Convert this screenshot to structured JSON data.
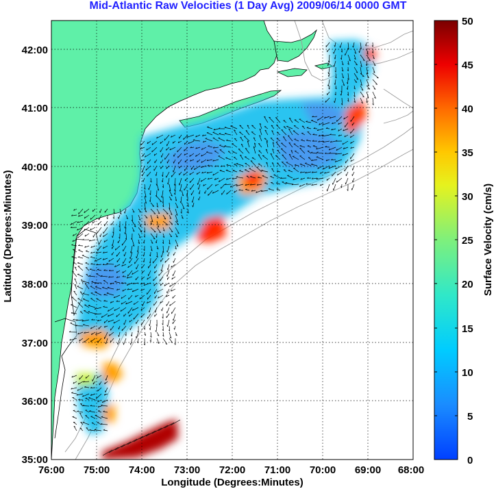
{
  "title": "Mid-Atlantic Raw Velocities (1 Day Avg) 2009/06/14 0000 GMT",
  "xlabel": "Longitude (Degrees:Minutes)",
  "ylabel": "Latitude (Degrees:Minutes)",
  "colorbar_label": "Surface Velocity (cm/s)",
  "x_ticks": [
    "76:00",
    "75:00",
    "74:00",
    "73:00",
    "72:00",
    "71:00",
    "70:00",
    "69:00",
    "68:00"
  ],
  "y_ticks": [
    "42:00",
    "41:00",
    "40:00",
    "39:00",
    "38:00",
    "37:00",
    "36:00",
    "35:00"
  ],
  "colorbar_ticks": [
    "50",
    "45",
    "40",
    "35",
    "30",
    "25",
    "20",
    "15",
    "10",
    "5",
    "0"
  ],
  "colors": {
    "land": "#5ff0a8",
    "ocean": "#ffffff",
    "title": "#1f1fff",
    "grid": "#000000",
    "bathymetry": "#9a9a9a"
  },
  "chart_data": {
    "type": "heatmap",
    "x_range_deg_west": [
      76,
      68
    ],
    "y_range_deg_north": [
      35,
      42.5
    ],
    "colorbar_range_cm_s": [
      0,
      50
    ],
    "colormap": "jet",
    "grid": true
  }
}
